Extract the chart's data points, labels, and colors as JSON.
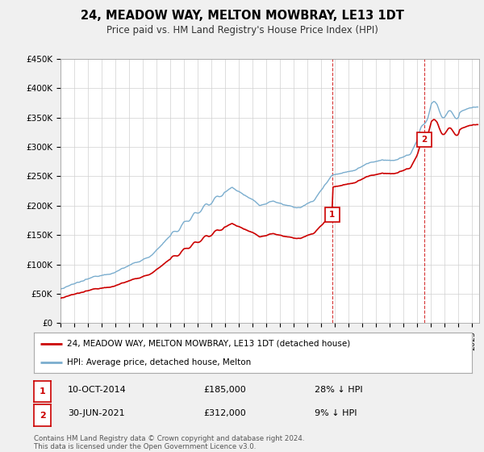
{
  "title": "24, MEADOW WAY, MELTON MOWBRAY, LE13 1DT",
  "subtitle": "Price paid vs. HM Land Registry's House Price Index (HPI)",
  "ylim": [
    0,
    450000
  ],
  "yticks": [
    0,
    50000,
    100000,
    150000,
    200000,
    250000,
    300000,
    350000,
    400000,
    450000
  ],
  "ytick_labels": [
    "£0",
    "£50K",
    "£100K",
    "£150K",
    "£200K",
    "£250K",
    "£300K",
    "£350K",
    "£400K",
    "£450K"
  ],
  "xlim_start": 1995.0,
  "xlim_end": 2025.5,
  "legend_entries": [
    "24, MEADOW WAY, MELTON MOWBRAY, LE13 1DT (detached house)",
    "HPI: Average price, detached house, Melton"
  ],
  "annotation1": {
    "label": "1",
    "date": "10-OCT-2014",
    "price": "£185,000",
    "pct": "28% ↓ HPI"
  },
  "annotation2": {
    "label": "2",
    "date": "30-JUN-2021",
    "price": "£312,000",
    "pct": "9% ↓ HPI"
  },
  "footnote": "Contains HM Land Registry data © Crown copyright and database right 2024.\nThis data is licensed under the Open Government Licence v3.0.",
  "sale1_x": 2014.78,
  "sale1_y": 185000,
  "sale2_x": 2021.5,
  "sale2_y": 312000,
  "line_color_red": "#cc0000",
  "line_color_blue": "#7aadce",
  "vline_color": "#cc0000",
  "background_color": "#f0f0f0",
  "plot_bg_color": "#ffffff"
}
